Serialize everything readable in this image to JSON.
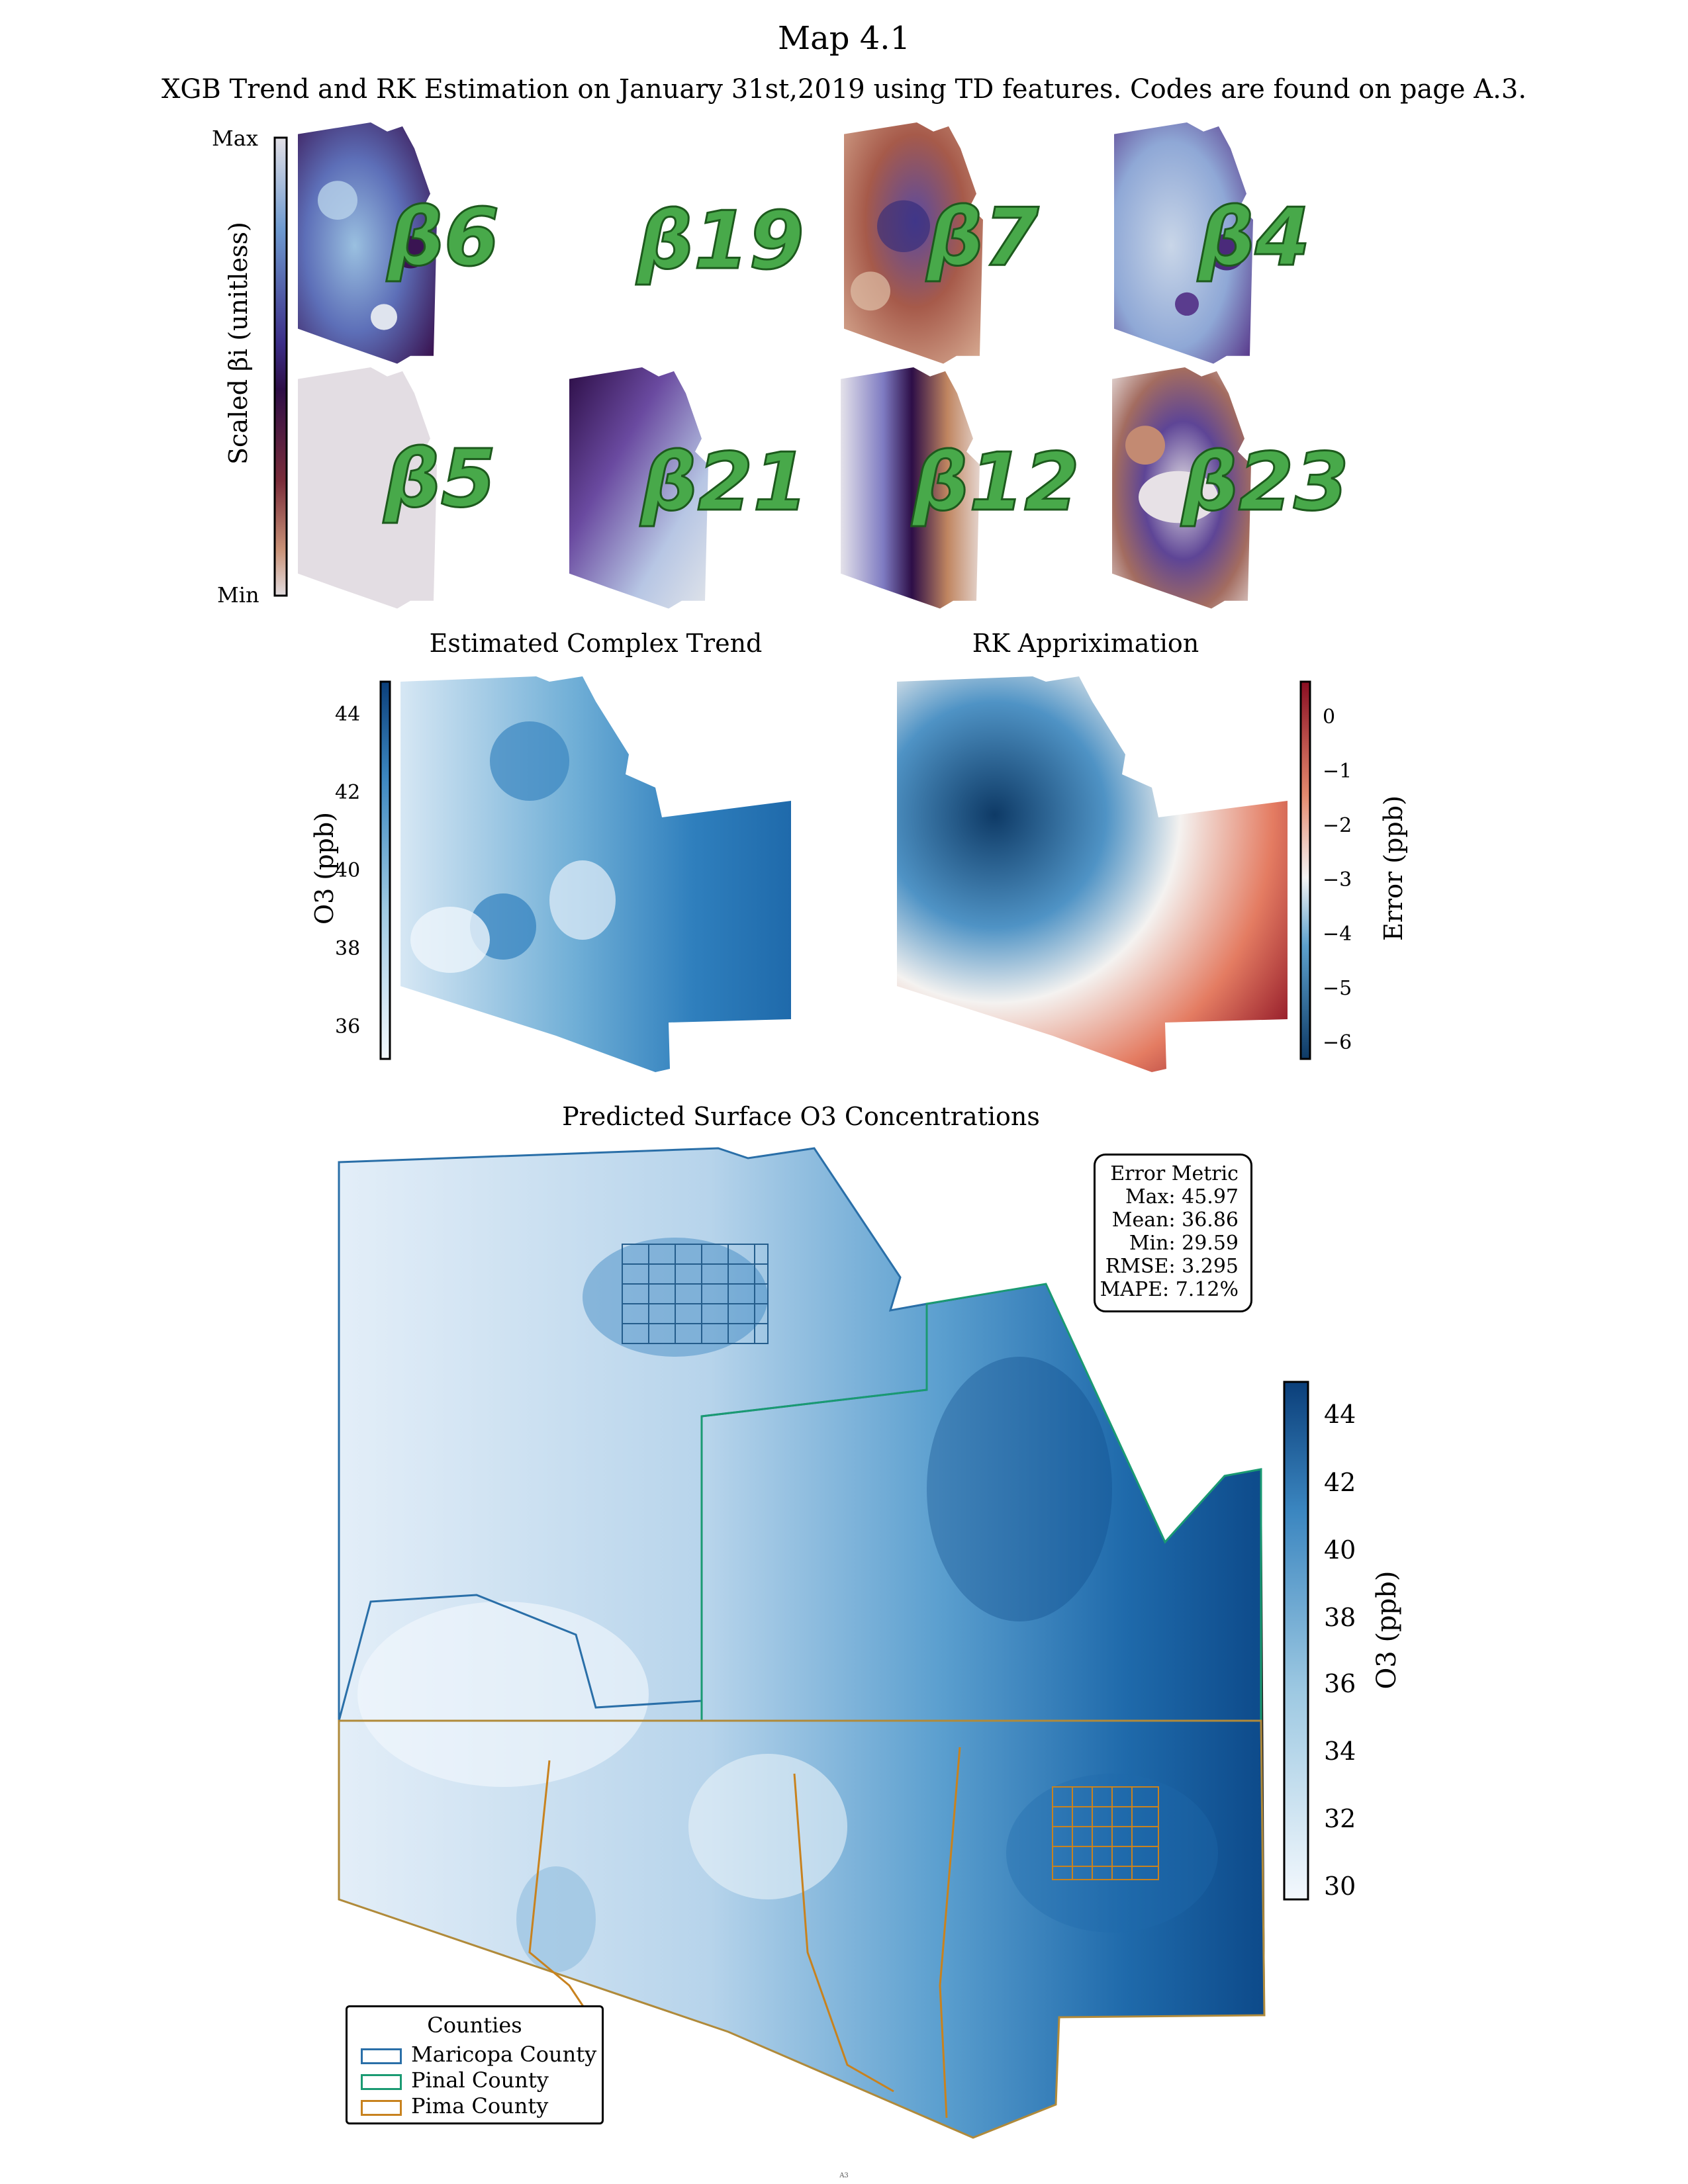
{
  "page_title": "Map 4.1",
  "page_subtitle": "XGB Trend and RK Estimation on January 31st,2019 using TD features. Codes are found on page A.3.",
  "beta_panel": {
    "colorbar_label": "Scaled βi (unitless)",
    "max_label": "Max",
    "min_label": "Min",
    "panels": [
      {
        "label": "β6"
      },
      {
        "label": "β19"
      },
      {
        "label": "β7"
      },
      {
        "label": "β4"
      },
      {
        "label": "β5"
      },
      {
        "label": "β21"
      },
      {
        "label": "β12"
      },
      {
        "label": "β23"
      }
    ]
  },
  "trend_map": {
    "title": "Estimated Complex Trend",
    "colorbar_label": "O3 (ppb)",
    "ticks": [
      "44",
      "42",
      "40",
      "38",
      "36"
    ]
  },
  "rk_map": {
    "title": "RK Appriximation",
    "colorbar_label": "Error (ppb)",
    "ticks": [
      "0",
      "−1",
      "−2",
      "−3",
      "−4",
      "−5",
      "−6"
    ]
  },
  "main_map": {
    "title": "Predicted Surface O3 Concentrations",
    "colorbar_label": "O3 (ppb)",
    "ticks": [
      "44",
      "42",
      "40",
      "38",
      "36",
      "34",
      "32",
      "30"
    ],
    "error_metric": {
      "title": "Error Metric",
      "lines": [
        "Max: 45.97",
        "Mean: 36.86",
        "Min: 29.59",
        "RMSE: 3.295",
        "MAPE: 7.12%"
      ]
    },
    "legend": {
      "title": "Counties",
      "items": [
        {
          "label": "Maricopa County",
          "color": "#2a6fa8"
        },
        {
          "label": "Pinal County",
          "color": "#1a9a72"
        },
        {
          "label": "Pima County",
          "color": "#c8821e"
        }
      ]
    }
  },
  "footer_note": "A3",
  "colors": {
    "blues_dark": "#0b3f7a",
    "blues_light": "#f3f8fd",
    "rdbu_red": "#8a0e22",
    "twilight_purple": "#2d0e47"
  }
}
